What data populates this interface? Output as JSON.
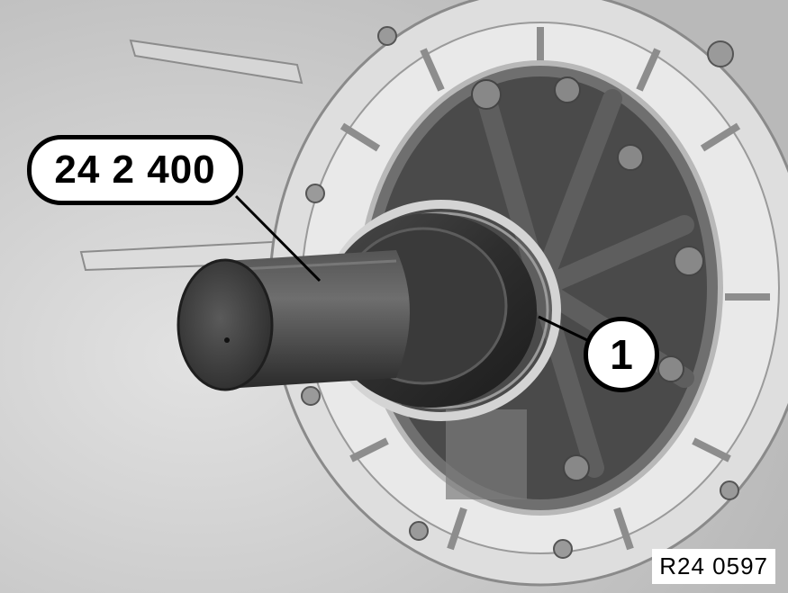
{
  "figure": {
    "tool_callout": "24 2 400",
    "part_callout": "1",
    "reference_code": "R24 0597"
  },
  "colors": {
    "background_gray": "#cfcfcf",
    "housing_light": "#e6e6e6",
    "tool_dark": "#3a3a3a",
    "callout_fill": "#ffffff",
    "callout_stroke": "#000000"
  }
}
